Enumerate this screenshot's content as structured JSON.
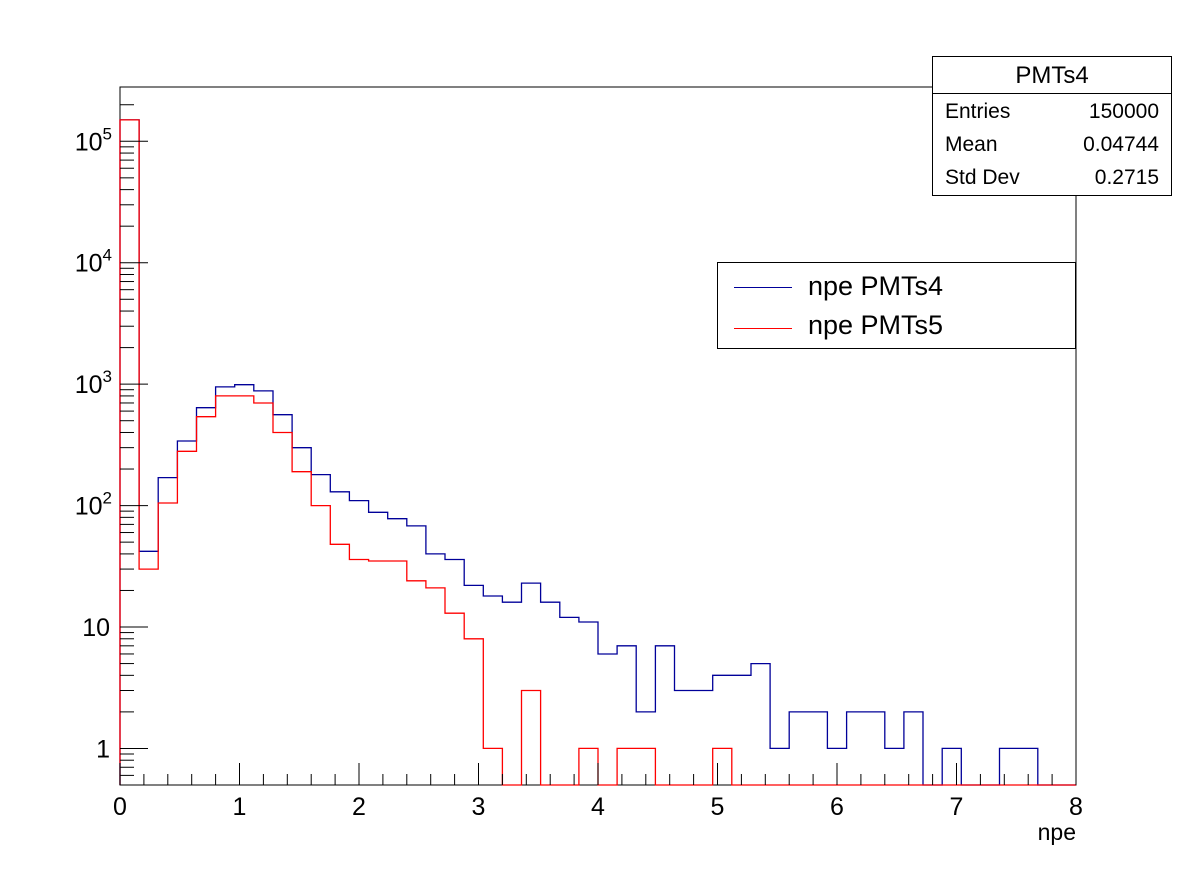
{
  "chart_data": {
    "type": "histogram",
    "xlabel": "npe",
    "ylabel": "",
    "xlim": [
      0,
      8
    ],
    "ylim": [
      0.5,
      280000
    ],
    "yscale": "log",
    "bin_width": 0.16,
    "x_ticks": [
      "0",
      "1",
      "2",
      "3",
      "4",
      "5",
      "6",
      "7",
      "8"
    ],
    "y_ticks": [
      {
        "value": 1,
        "label": "1"
      },
      {
        "value": 10,
        "label": "10"
      },
      {
        "value": 100,
        "label": "10",
        "exp": "2"
      },
      {
        "value": 1000,
        "label": "10",
        "exp": "3"
      },
      {
        "value": 10000,
        "label": "10",
        "exp": "4"
      },
      {
        "value": 100000,
        "label": "10",
        "exp": "5"
      }
    ],
    "series": [
      {
        "name": "npe PMTs4",
        "color": "#000099",
        "values": [
          150000,
          42,
          170,
          340,
          640,
          950,
          990,
          880,
          560,
          300,
          180,
          130,
          110,
          88,
          78,
          68,
          40,
          36,
          22,
          18,
          16,
          23,
          16,
          12,
          11,
          6,
          7,
          2,
          7,
          3,
          3,
          4,
          4,
          5,
          1,
          2,
          2,
          1,
          2,
          2,
          1,
          2,
          0,
          1,
          0,
          0,
          1,
          1,
          0,
          0
        ]
      },
      {
        "name": "npe PMTs5",
        "color": "#ff0000",
        "values": [
          150000,
          30,
          105,
          280,
          540,
          800,
          800,
          700,
          400,
          190,
          100,
          48,
          36,
          35,
          35,
          24,
          21,
          13,
          8,
          1,
          0,
          3,
          0,
          0,
          1,
          0,
          1,
          1,
          0,
          0,
          0,
          1,
          0,
          0,
          0,
          0,
          0,
          0,
          0,
          0,
          0,
          0,
          0,
          0,
          0,
          0,
          0,
          0,
          0,
          0
        ]
      }
    ],
    "legend": {
      "position": "right",
      "entries": [
        "npe PMTs4",
        "npe PMTs5"
      ]
    },
    "stats": {
      "title": "PMTs4",
      "rows": [
        {
          "key": "Entries",
          "value": "150000"
        },
        {
          "key": "Mean",
          "value": "0.04744"
        },
        {
          "key": "Std Dev",
          "value": "0.2715"
        }
      ]
    }
  }
}
